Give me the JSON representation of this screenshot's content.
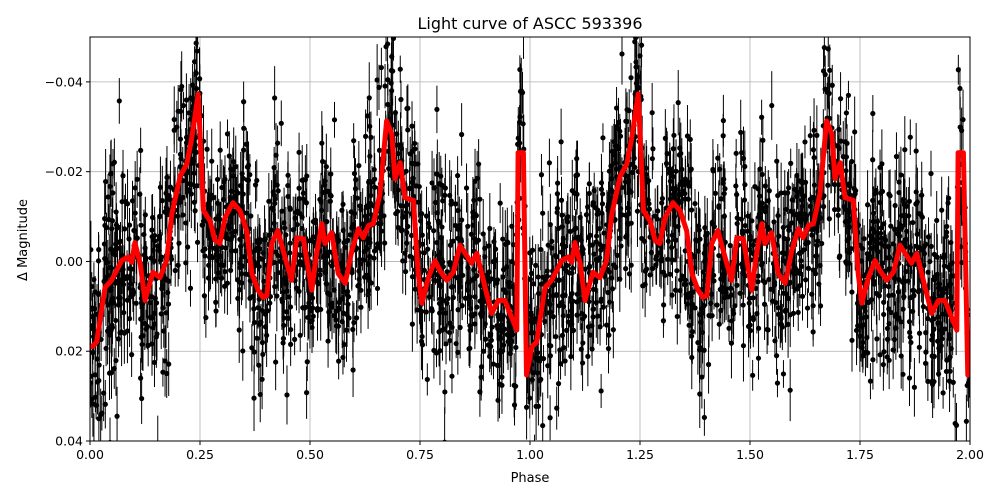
{
  "chart_data": {
    "type": "scatter",
    "title": "Light curve of ASCC 593396",
    "xlabel": "Phase",
    "ylabel": "Δ Magnitude",
    "xlim": [
      0.0,
      2.0
    ],
    "ylim": [
      0.04,
      -0.05
    ],
    "y_inverted": true,
    "grid": true,
    "xticks": [
      "0.00",
      "0.25",
      "0.50",
      "0.75",
      "1.00",
      "1.25",
      "1.50",
      "1.75",
      "2.00"
    ],
    "xtick_values": [
      0,
      0.25,
      0.5,
      0.75,
      1.0,
      1.25,
      1.5,
      1.75,
      2.0
    ],
    "yticks": [
      "−0.04",
      "−0.02",
      "0.00",
      "0.02",
      "0.04"
    ],
    "ytick_values": [
      -0.04,
      -0.02,
      0.0,
      0.02,
      0.04
    ],
    "series": [
      {
        "kind": "errorbar-points",
        "color": "#000000"
      },
      {
        "kind": "line",
        "color": "#ff0000",
        "x": [
          0.004,
          0.015,
          0.034,
          0.049,
          0.072,
          0.087,
          0.095,
          0.102,
          0.114,
          0.125,
          0.143,
          0.159,
          0.174,
          0.186,
          0.205,
          0.22,
          0.231,
          0.246,
          0.258,
          0.273,
          0.284,
          0.295,
          0.307,
          0.325,
          0.341,
          0.356,
          0.368,
          0.382,
          0.393,
          0.402,
          0.413,
          0.427,
          0.439,
          0.458,
          0.47,
          0.485,
          0.504,
          0.515,
          0.527,
          0.534,
          0.549,
          0.564,
          0.58,
          0.595,
          0.61,
          0.621,
          0.633,
          0.644,
          0.659,
          0.674,
          0.686,
          0.693,
          0.705,
          0.716,
          0.735,
          0.746,
          0.754,
          0.769,
          0.784,
          0.795,
          0.811,
          0.826,
          0.841,
          0.856,
          0.867,
          0.879,
          0.898,
          0.913,
          0.928,
          0.943,
          0.958,
          0.97,
          0.973,
          0.985,
          0.992,
          1.004,
          1.015,
          1.034,
          1.049,
          1.072,
          1.087,
          1.095,
          1.102,
          1.114,
          1.125,
          1.143,
          1.159,
          1.174,
          1.186,
          1.205,
          1.22,
          1.231,
          1.246,
          1.258,
          1.273,
          1.284,
          1.295,
          1.307,
          1.325,
          1.341,
          1.356,
          1.368,
          1.382,
          1.393,
          1.402,
          1.413,
          1.427,
          1.439,
          1.458,
          1.47,
          1.485,
          1.504,
          1.515,
          1.527,
          1.534,
          1.549,
          1.564,
          1.58,
          1.595,
          1.61,
          1.621,
          1.633,
          1.644,
          1.659,
          1.674,
          1.686,
          1.693,
          1.705,
          1.716,
          1.735,
          1.746,
          1.754,
          1.769,
          1.784,
          1.795,
          1.811,
          1.826,
          1.841,
          1.856,
          1.867,
          1.879,
          1.898,
          1.913,
          1.928,
          1.943,
          1.958,
          1.97,
          1.973,
          1.985,
          1.995
        ],
        "y": [
          0.019,
          0.018,
          0.0058,
          0.0042,
          -0.0002,
          -0.001,
          0.0002,
          -0.0042,
          0.0005,
          0.0087,
          0.0024,
          0.0036,
          -0.0002,
          -0.0106,
          -0.019,
          -0.0217,
          -0.0273,
          -0.0373,
          -0.0113,
          -0.009,
          -0.0047,
          -0.004,
          -0.0098,
          -0.0131,
          -0.0113,
          -0.0069,
          0.0027,
          0.0064,
          0.008,
          0.0076,
          -0.004,
          -0.0069,
          -0.0024,
          0.0042,
          -0.0053,
          -0.005,
          0.0064,
          -0.0018,
          -0.0084,
          -0.004,
          -0.0064,
          0.0027,
          0.0049,
          -0.0024,
          -0.0073,
          -0.0053,
          -0.008,
          -0.0084,
          -0.0151,
          -0.0313,
          -0.0284,
          -0.0184,
          -0.022,
          -0.0142,
          -0.0136,
          0.0027,
          0.0093,
          0.0036,
          -0.0002,
          0.002,
          0.0042,
          0.0024,
          -0.0036,
          -0.0013,
          0.0004,
          -0.0018,
          0.0058,
          0.0116,
          0.0087,
          0.0087,
          0.0124,
          0.0153,
          -0.0242,
          -0.0242,
          0.0253,
          0.019,
          0.018,
          0.0058,
          0.0042,
          -0.0002,
          -0.001,
          0.0002,
          -0.0042,
          0.0005,
          0.0087,
          0.0024,
          0.0036,
          -0.0002,
          -0.0106,
          -0.019,
          -0.0217,
          -0.0273,
          -0.0373,
          -0.0113,
          -0.009,
          -0.0047,
          -0.004,
          -0.0098,
          -0.0131,
          -0.0113,
          -0.0069,
          0.0027,
          0.0064,
          0.008,
          0.0076,
          -0.004,
          -0.0069,
          -0.0024,
          0.0042,
          -0.0053,
          -0.005,
          0.0064,
          -0.0018,
          -0.0084,
          -0.004,
          -0.0064,
          0.0027,
          0.0049,
          -0.0024,
          -0.0073,
          -0.0053,
          -0.008,
          -0.0084,
          -0.0151,
          -0.0313,
          -0.0284,
          -0.0184,
          -0.022,
          -0.0142,
          -0.0136,
          0.0027,
          0.0093,
          0.0036,
          -0.0002,
          0.002,
          0.0042,
          0.0024,
          -0.0036,
          -0.0013,
          0.0004,
          -0.0018,
          0.0058,
          0.0116,
          0.0087,
          0.0087,
          0.0124,
          0.0153,
          -0.0242,
          -0.0242,
          0.0253
        ]
      }
    ]
  }
}
